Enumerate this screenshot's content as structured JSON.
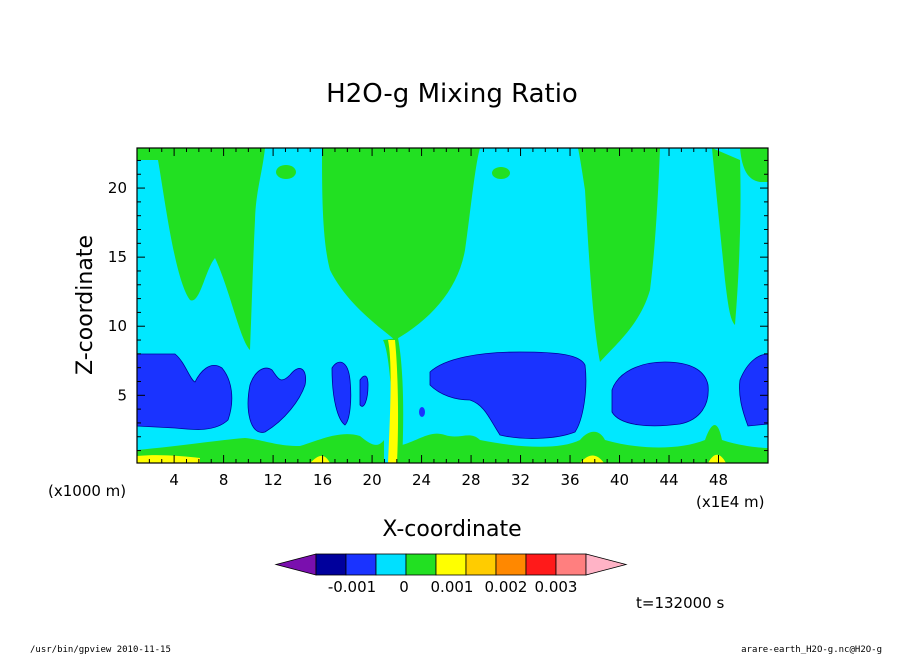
{
  "chart_data": {
    "type": "contour",
    "title": "H2O-g Mixing Ratio",
    "xlabel": "X-coordinate",
    "ylabel": "Z-coordinate",
    "x_scale_note": "(x1E4 m)",
    "y_scale_note": "(x1000 m)",
    "x_ticks": [
      4,
      8,
      12,
      16,
      20,
      24,
      28,
      32,
      36,
      40,
      44,
      48
    ],
    "y_ticks": [
      5,
      10,
      15,
      20
    ],
    "xlim": [
      1,
      52
    ],
    "ylim": [
      0.1,
      22.9
    ],
    "colorbar": {
      "tick_labels": [
        "-0.001",
        "0",
        "0.001",
        "0.002",
        "0.003"
      ],
      "colors": [
        "#7a0fae",
        "#00009c",
        "#1a33ff",
        "#00e0ff",
        "#22e022",
        "#ffff00",
        "#ffcc00",
        "#ff8800",
        "#ff1a1a",
        "#ff7f7f",
        "#ffb3c6"
      ]
    },
    "annotation": "t=132000 s"
  },
  "footer": {
    "left": "/usr/bin/gpview   2010-11-15",
    "right": "arare-earth_H2O-g.nc@H2O-g"
  }
}
